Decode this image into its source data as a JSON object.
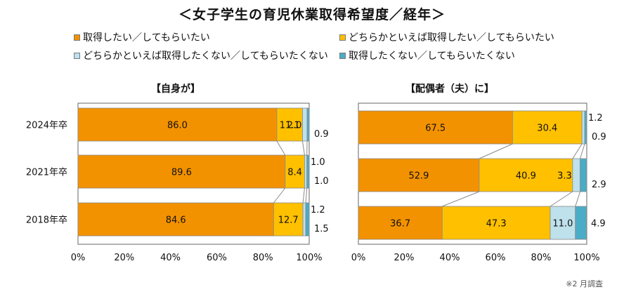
{
  "title": "＜女子学生の育児休業取得希望度／経年＞",
  "legend": [
    {
      "label": "取得したい／してもらいたい",
      "color": "#F39200"
    },
    {
      "label": "どちらかといえば取得したい／してもらいたい",
      "color": "#FFC000"
    },
    {
      "label": "どちらかといえば取得したくない／してもらいたくない",
      "color": "#BEE1EC"
    },
    {
      "label": "取得したくない／してもらいたくない",
      "color": "#4BACC6"
    }
  ],
  "footnote": "※2 月調査",
  "chart_data": [
    {
      "type": "bar",
      "orientation": "horizontal",
      "stacked": true,
      "title": "【自身が】",
      "categories": [
        "2024年卒",
        "2021年卒",
        "2018年卒"
      ],
      "series": [
        {
          "name": "取得したい／してもらいたい",
          "values": [
            86.0,
            89.6,
            84.6
          ]
        },
        {
          "name": "どちらかといえば取得したい／してもらいたい",
          "values": [
            11.1,
            8.4,
            12.7
          ]
        },
        {
          "name": "どちらかといえば取得したくない／してもらいたくない",
          "values": [
            2.0,
            1.0,
            1.2
          ]
        },
        {
          "name": "取得したくない／してもらいたくない",
          "values": [
            0.9,
            1.0,
            1.5
          ]
        }
      ],
      "labels": [
        [
          "86.0",
          "11.1",
          "2.0",
          "0.9"
        ],
        [
          "89.6",
          "8.4",
          "1.0",
          "1.0"
        ],
        [
          "84.6",
          "12.7",
          "1.2",
          "1.5"
        ]
      ],
      "xlim": [
        0,
        100
      ],
      "xticks": [
        "0%",
        "20%",
        "40%",
        "60%",
        "80%",
        "100%"
      ]
    },
    {
      "type": "bar",
      "orientation": "horizontal",
      "stacked": true,
      "title": "【配偶者（夫）に】",
      "categories": [
        "2024年卒",
        "2021年卒",
        "2018年卒"
      ],
      "series": [
        {
          "name": "取得したい／してもらいたい",
          "values": [
            67.5,
            52.9,
            36.7
          ]
        },
        {
          "name": "どちらかといえば取得したい／してもらいたい",
          "values": [
            30.4,
            40.9,
            47.3
          ]
        },
        {
          "name": "どちらかといえば取得したくない／してもらいたくない",
          "values": [
            1.2,
            3.3,
            11.0
          ]
        },
        {
          "name": "取得したくない／してもらいたくない",
          "values": [
            0.9,
            2.9,
            4.9
          ]
        }
      ],
      "labels": [
        [
          "67.5",
          "30.4",
          "1.2",
          "0.9"
        ],
        [
          "52.9",
          "40.9",
          "3.3",
          "2.9"
        ],
        [
          "36.7",
          "47.3",
          "11.0",
          "4.9"
        ]
      ],
      "xlim": [
        0,
        100
      ],
      "xticks": [
        "0%",
        "20%",
        "40%",
        "60%",
        "80%",
        "100%"
      ]
    }
  ]
}
